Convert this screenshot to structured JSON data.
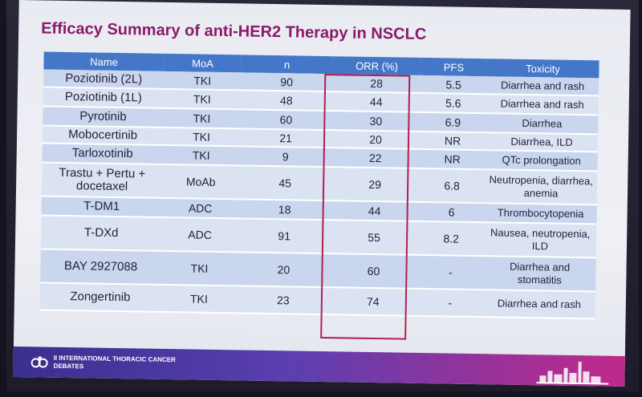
{
  "title": "Efficacy Summary of anti-HER2 Therapy in NSCLC",
  "table": {
    "headers": [
      "Name",
      "MoA",
      "n",
      "ORR (%)",
      "PFS",
      "Toxicity"
    ],
    "rows": [
      [
        "Poziotinib (2L)",
        "TKI",
        "90",
        "28",
        "5.5",
        "Diarrhea and rash"
      ],
      [
        "Poziotinib (1L)",
        "TKI",
        "48",
        "44",
        "5.6",
        "Diarrhea and rash"
      ],
      [
        "Pyrotinib",
        "TKI",
        "60",
        "30",
        "6.9",
        "Diarrhea"
      ],
      [
        "Mobocertinib",
        "TKI",
        "21",
        "20",
        "NR",
        "Diarrhea, ILD"
      ],
      [
        "Tarloxotinib",
        "TKI",
        "9",
        "22",
        "NR",
        "QTc prolongation"
      ],
      [
        "Trastu + Pertu + docetaxel",
        "MoAb",
        "45",
        "29",
        "6.8",
        "Neutropenia, diarrhea, anemia"
      ],
      [
        "T-DM1",
        "ADC",
        "18",
        "44",
        "6",
        "Thrombocytopenia"
      ],
      [
        "T-DXd",
        "ADC",
        "91",
        "55",
        "8.2",
        "Nausea, neutropenia, ILD"
      ],
      [
        "BAY 2927088",
        "TKI",
        "20",
        "60",
        "-",
        "Diarrhea and stomatitis"
      ],
      [
        "Zongertinib",
        "TKI",
        "23",
        "74",
        "-",
        "Diarrhea and rash"
      ]
    ]
  },
  "footer": {
    "event_name": "II INTERNATIONAL THORACIC CANCER DEBATES"
  },
  "colors": {
    "title": "#8a1a6a",
    "header_bg": "#4577c9",
    "row_odd": "#c9d6ee",
    "row_even": "#dbe3f3",
    "highlight_box": "#b02050"
  }
}
